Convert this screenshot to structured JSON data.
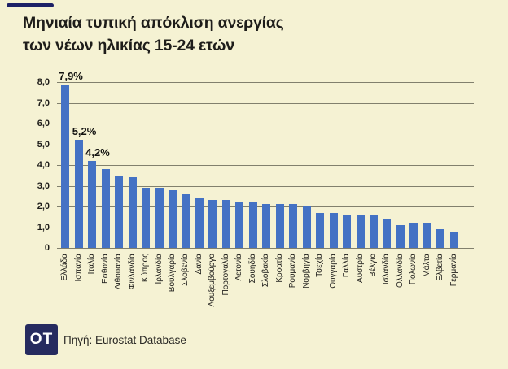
{
  "page": {
    "background": "#f5f2d3",
    "accent_color": "#1d2166"
  },
  "header": {
    "title_line1": "Μηνιαία τυπική απόκλιση ανεργίας",
    "title_line2": "των νέων ηλικίας 15-24 ετών"
  },
  "chart_data": {
    "type": "bar",
    "title": "Μηνιαία τυπική απόκλιση ανεργίας των νέων ηλικίας 15-24 ετών",
    "categories": [
      "Ελλάδα",
      "Ισπανία",
      "Ιταλία",
      "Εσθονία",
      "Λιθουανία",
      "Φινλανδία",
      "Κύπρος",
      "Ιρλανδία",
      "Βουλγαρία",
      "Σλοβενία",
      "Δανία",
      "Λουξεμβούργο",
      "Πορτογαλία",
      "Λετονία",
      "Σουηδία",
      "Σλοβακία",
      "Κροατία",
      "Ρουμανία",
      "Νορβηγία",
      "Τσεχία",
      "Ουγγαρία",
      "Γαλλία",
      "Αυστρία",
      "Βέλγιο",
      "Ισλανδία",
      "Ολλανδία",
      "Πολωνία",
      "Μάλτα",
      "Ελβετία",
      "Γερμανία"
    ],
    "values": [
      7.9,
      5.2,
      4.2,
      3.8,
      3.5,
      3.4,
      2.9,
      2.9,
      2.8,
      2.6,
      2.4,
      2.3,
      2.3,
      2.2,
      2.2,
      2.1,
      2.1,
      2.1,
      2.0,
      1.7,
      1.7,
      1.6,
      1.6,
      1.6,
      1.4,
      1.1,
      1.2,
      1.2,
      0.9,
      0.8
    ],
    "point_labels": {
      "0": "7,9%",
      "1": "5,2%",
      "2": "4,2%"
    },
    "xlabel": "",
    "ylabel": "",
    "ylim": [
      0,
      8
    ],
    "yticks": [
      "8,0",
      "7,0",
      "6,0",
      "5,0",
      "4,0",
      "3,0",
      "2,0",
      "1,0",
      "0"
    ],
    "grid": true,
    "legend": "none",
    "bar_color": "#4472c4",
    "gridline_color": "#81806d"
  },
  "footer": {
    "logo_text": "OT",
    "logo_bg": "#262b5f",
    "logo_fg": "#ffffff",
    "source_text": "Πηγή: Eurostat Database"
  }
}
